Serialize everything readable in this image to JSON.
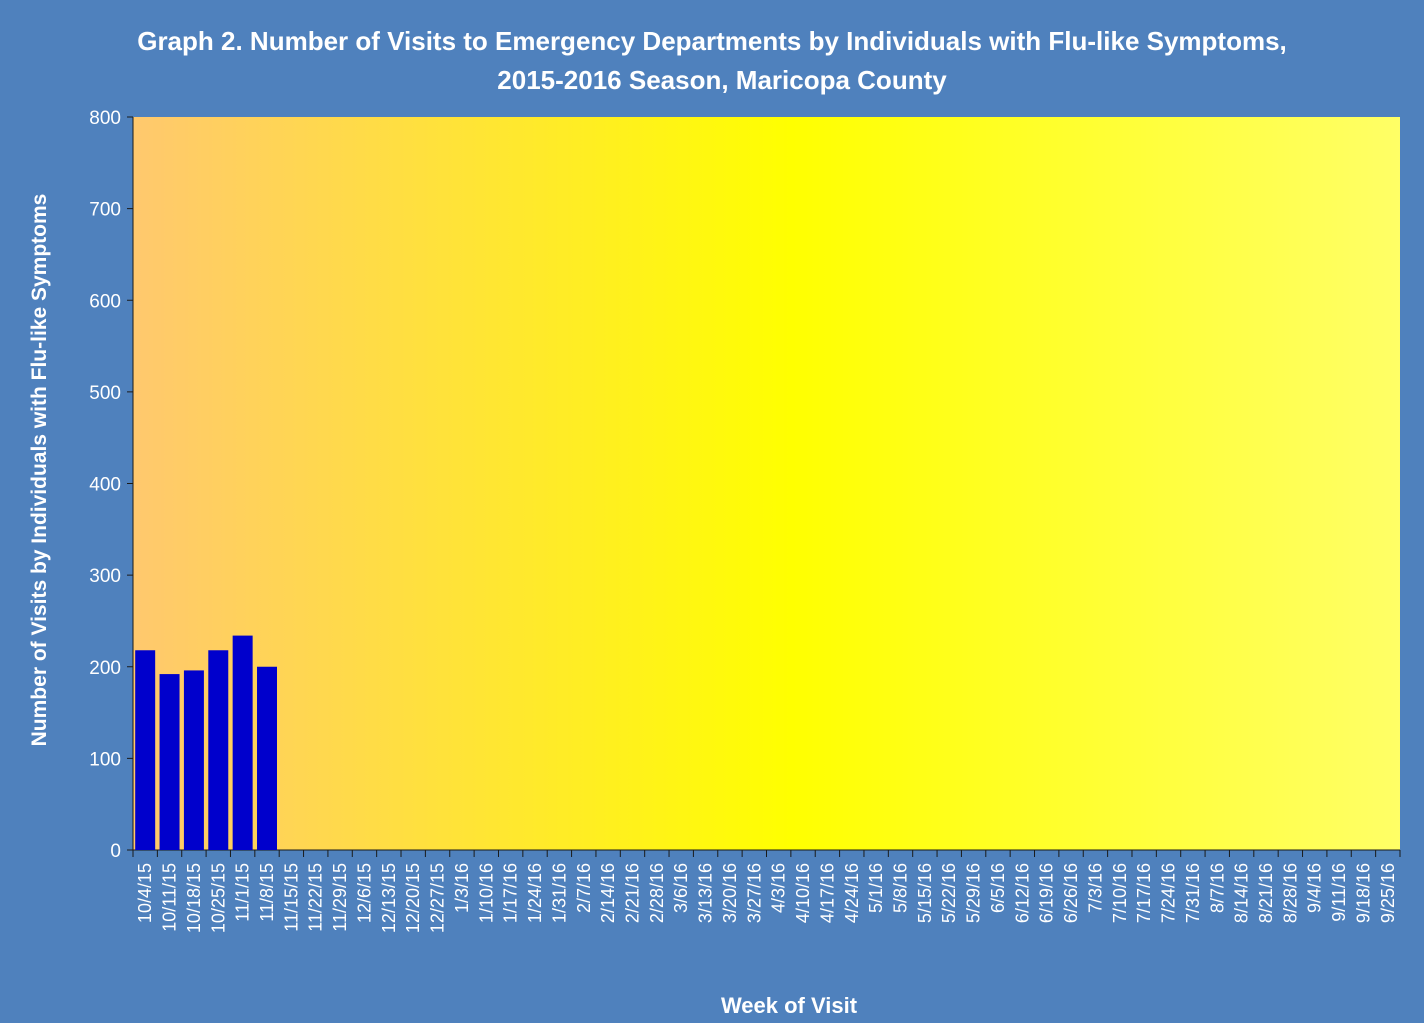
{
  "colors": {
    "background": "#4F81BD",
    "bar": "#0000CC",
    "plot_gradient_start": "#FFC86E",
    "plot_gradient_mid": "#FFFF00",
    "plot_gradient_end": "#FFFF66",
    "text": "#FFFFFF"
  },
  "chart_data": {
    "type": "bar",
    "title": "Graph 2. Number of Visits to Emergency Departments by Individuals with Flu-like Symptoms,",
    "subtitle": "2015-2016 Season, Maricopa County",
    "xlabel": "Week of Visit",
    "ylabel": "Number of Visits by Individuals with Flu-like Symptoms",
    "ylim": [
      0,
      800
    ],
    "yticks": [
      "0",
      "100",
      "200",
      "300",
      "400",
      "500",
      "600",
      "700",
      "800"
    ],
    "grid": false,
    "legend": "none",
    "categories": [
      "10/4/15",
      "10/11/15",
      "10/18/15",
      "10/25/15",
      "11/1/15",
      "11/8/15",
      "11/15/15",
      "11/22/15",
      "11/29/15",
      "12/6/15",
      "12/13/15",
      "12/20/15",
      "12/27/15",
      "1/3/16",
      "1/10/16",
      "1/17/16",
      "1/24/16",
      "1/31/16",
      "2/7/16",
      "2/14/16",
      "2/21/16",
      "2/28/16",
      "3/6/16",
      "3/13/16",
      "3/20/16",
      "3/27/16",
      "4/3/16",
      "4/10/16",
      "4/17/16",
      "4/24/16",
      "5/1/16",
      "5/8/16",
      "5/15/16",
      "5/22/16",
      "5/29/16",
      "6/5/16",
      "6/12/16",
      "6/19/16",
      "6/26/16",
      "7/3/16",
      "7/10/16",
      "7/17/16",
      "7/24/16",
      "7/31/16",
      "8/7/16",
      "8/14/16",
      "8/21/16",
      "8/28/16",
      "9/4/16",
      "9/11/16",
      "9/18/16",
      "9/25/16"
    ],
    "values": [
      218,
      192,
      196,
      218,
      234,
      200,
      null,
      null,
      null,
      null,
      null,
      null,
      null,
      null,
      null,
      null,
      null,
      null,
      null,
      null,
      null,
      null,
      null,
      null,
      null,
      null,
      null,
      null,
      null,
      null,
      null,
      null,
      null,
      null,
      null,
      null,
      null,
      null,
      null,
      null,
      null,
      null,
      null,
      null,
      null,
      null,
      null,
      null,
      null,
      null,
      null,
      null
    ]
  }
}
